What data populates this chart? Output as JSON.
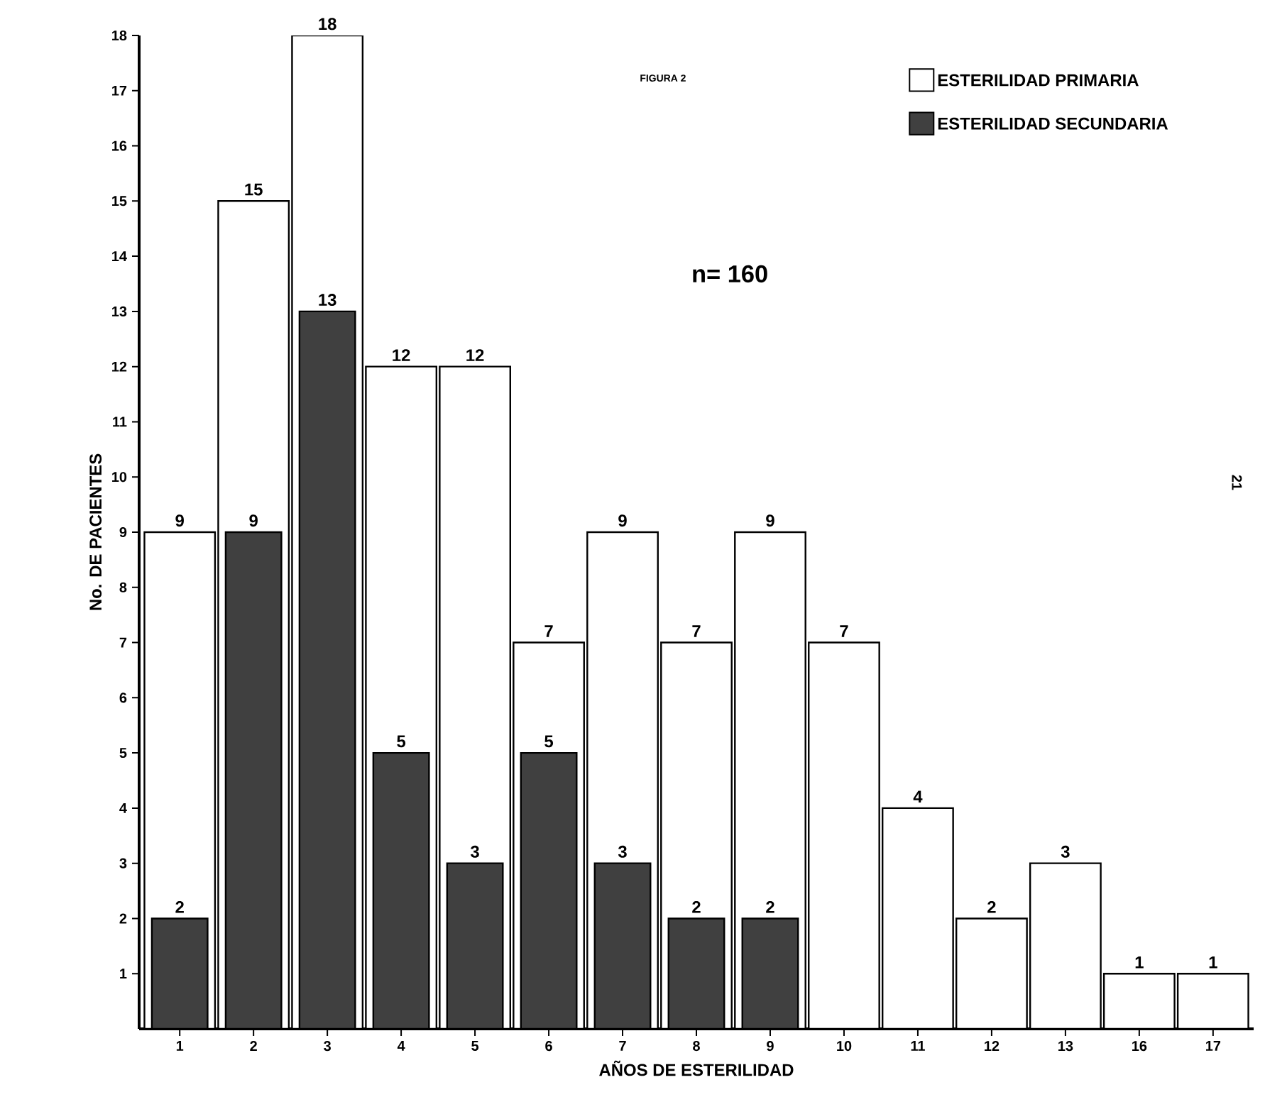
{
  "chart_data": {
    "type": "bar",
    "title": "FIGURA 2",
    "xlabel": "AÑOS DE ESTERILIDAD",
    "ylabel": "No. DE PACIENTES",
    "categories": [
      "1",
      "2",
      "3",
      "4",
      "5",
      "6",
      "7",
      "8",
      "9",
      "10",
      "11",
      "12",
      "13",
      "16",
      "17"
    ],
    "series": [
      {
        "name": "ESTERILIDAD PRIMARIA",
        "color": "#ffffff",
        "values": [
          9,
          15,
          18,
          12,
          12,
          7,
          9,
          7,
          9,
          7,
          4,
          2,
          3,
          1,
          1
        ]
      },
      {
        "name": "ESTERILIDAD SECUNDARIA",
        "color": "#404040",
        "values": [
          2,
          9,
          13,
          5,
          3,
          5,
          3,
          2,
          2,
          null,
          null,
          null,
          null,
          null,
          null
        ]
      }
    ],
    "ylim": [
      0,
      18
    ],
    "yticks": [
      1,
      2,
      3,
      4,
      5,
      6,
      7,
      8,
      9,
      10,
      11,
      12,
      13,
      14,
      15,
      16,
      17,
      18
    ],
    "data_labels": true,
    "legend": "top right",
    "grid": false,
    "annotations": [
      "n= 160",
      "21"
    ]
  }
}
